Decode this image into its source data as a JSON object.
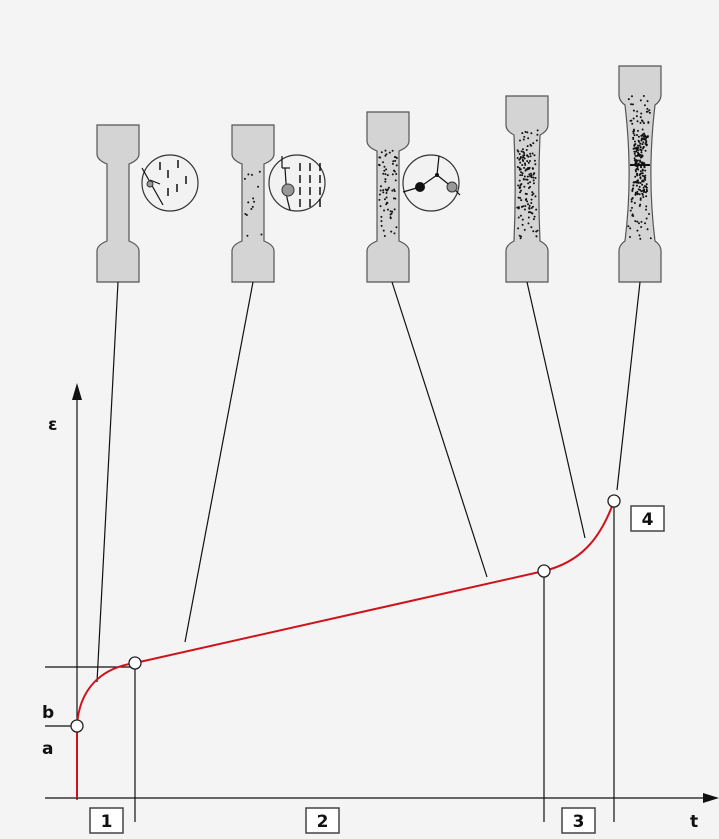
{
  "axes": {
    "y_label": "ε",
    "x_label": "t"
  },
  "levels": {
    "a": "a",
    "b": "b"
  },
  "stages": [
    "1",
    "2",
    "3",
    "4"
  ]
}
